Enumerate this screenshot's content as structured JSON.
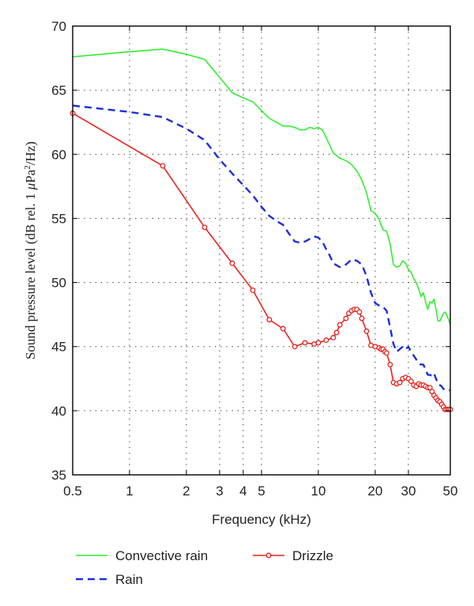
{
  "chart_data": {
    "type": "line",
    "xlabel": "Frequency (kHz)",
    "ylabel": {
      "prefix": "Sound pressure level (dB rel. 1 ",
      "mu": "μ",
      "pa": "Pa",
      "sup": "2",
      "suffix": "/Hz)"
    },
    "xscale": "log",
    "xlim": [
      0.5,
      50
    ],
    "ylim": [
      35,
      70
    ],
    "x_ticks": [
      0.5,
      1,
      2,
      3,
      4,
      5,
      10,
      20,
      30,
      50
    ],
    "x_tick_labels": [
      "0.5",
      "1",
      "2",
      "3",
      "4",
      "5",
      "10",
      "20",
      "30",
      "50"
    ],
    "y_ticks": [
      35,
      40,
      45,
      50,
      55,
      60,
      65,
      70
    ],
    "y_tick_labels": [
      "35",
      "40",
      "45",
      "50",
      "55",
      "60",
      "65",
      "70"
    ],
    "grid": true,
    "legend_position": "bottom",
    "series": [
      {
        "name": "Convective rain",
        "color": "#33ee33",
        "style": "solid",
        "marker": "none",
        "points": [
          [
            0.5,
            67.6
          ],
          [
            1.0,
            68.0
          ],
          [
            1.5,
            68.2
          ],
          [
            2.0,
            67.8
          ],
          [
            2.5,
            67.4
          ],
          [
            3.0,
            66.0
          ],
          [
            3.5,
            64.8
          ],
          [
            4.0,
            64.4
          ],
          [
            4.5,
            64.1
          ],
          [
            5.0,
            63.4
          ],
          [
            5.5,
            62.8
          ],
          [
            6.0,
            62.5
          ],
          [
            6.5,
            62.2
          ],
          [
            7.0,
            62.2
          ],
          [
            7.5,
            62.1
          ],
          [
            8.0,
            61.9
          ],
          [
            8.5,
            61.9
          ],
          [
            9.0,
            62.1
          ],
          [
            9.5,
            62.0
          ],
          [
            10.0,
            62.1
          ],
          [
            10.5,
            61.9
          ],
          [
            11.0,
            61.3
          ],
          [
            11.5,
            60.7
          ],
          [
            12.0,
            60.1
          ],
          [
            13.0,
            59.7
          ],
          [
            14.0,
            59.5
          ],
          [
            15.0,
            59.2
          ],
          [
            16.0,
            58.7
          ],
          [
            17.0,
            58.0
          ],
          [
            18.0,
            57.0
          ],
          [
            18.5,
            56.3
          ],
          [
            19.0,
            55.6
          ],
          [
            20.0,
            55.4
          ],
          [
            21.0,
            54.9
          ],
          [
            22.0,
            54.1
          ],
          [
            23.0,
            54.0
          ],
          [
            24.0,
            53.0
          ],
          [
            25.0,
            51.4
          ],
          [
            26.0,
            51.2
          ],
          [
            27.0,
            51.3
          ],
          [
            28.0,
            51.7
          ],
          [
            29.0,
            51.5
          ],
          [
            30.0,
            51.0
          ],
          [
            31.0,
            50.8
          ],
          [
            32.0,
            50.3
          ],
          [
            33.0,
            50.0
          ],
          [
            34.0,
            49.5
          ],
          [
            35.0,
            48.9
          ],
          [
            36.0,
            49.2
          ],
          [
            37.0,
            48.5
          ],
          [
            38.0,
            47.9
          ],
          [
            39.0,
            48.5
          ],
          [
            40.0,
            48.4
          ],
          [
            41.0,
            48.7
          ],
          [
            42.0,
            47.9
          ],
          [
            43.0,
            47.0
          ],
          [
            44.0,
            47.0
          ],
          [
            45.0,
            47.3
          ],
          [
            46.0,
            47.6
          ],
          [
            47.0,
            47.7
          ],
          [
            48.0,
            47.4
          ],
          [
            49.0,
            47.1
          ],
          [
            50.0,
            46.7
          ]
        ]
      },
      {
        "name": "Rain",
        "color": "#1a2ee0",
        "style": "dashed",
        "marker": "none",
        "points": [
          [
            0.5,
            63.8
          ],
          [
            1.0,
            63.3
          ],
          [
            1.5,
            62.9
          ],
          [
            2.0,
            62.0
          ],
          [
            2.5,
            61.1
          ],
          [
            3.0,
            59.6
          ],
          [
            3.5,
            58.5
          ],
          [
            4.0,
            57.6
          ],
          [
            4.5,
            56.8
          ],
          [
            5.0,
            55.9
          ],
          [
            5.5,
            55.2
          ],
          [
            6.0,
            54.8
          ],
          [
            6.5,
            54.5
          ],
          [
            7.0,
            53.8
          ],
          [
            7.5,
            53.2
          ],
          [
            8.0,
            53.1
          ],
          [
            8.5,
            53.2
          ],
          [
            9.0,
            53.4
          ],
          [
            9.5,
            53.6
          ],
          [
            10.0,
            53.5
          ],
          [
            10.5,
            53.2
          ],
          [
            11.0,
            52.6
          ],
          [
            11.5,
            52.1
          ],
          [
            12.0,
            51.5
          ],
          [
            13.0,
            51.2
          ],
          [
            14.0,
            51.4
          ],
          [
            15.0,
            51.8
          ],
          [
            16.0,
            51.7
          ],
          [
            17.0,
            51.4
          ],
          [
            18.0,
            50.5
          ],
          [
            19.0,
            49.2
          ],
          [
            20.0,
            48.4
          ],
          [
            21.0,
            48.2
          ],
          [
            22.0,
            48.1
          ],
          [
            23.0,
            47.8
          ],
          [
            24.0,
            46.5
          ],
          [
            25.0,
            45.2
          ],
          [
            26.0,
            44.6
          ],
          [
            27.0,
            44.8
          ],
          [
            28.0,
            45.0
          ],
          [
            29.0,
            44.8
          ],
          [
            30.0,
            45.0
          ],
          [
            31.0,
            44.6
          ],
          [
            32.0,
            44.3
          ],
          [
            33.0,
            44.0
          ],
          [
            34.0,
            43.7
          ],
          [
            35.0,
            43.6
          ],
          [
            36.0,
            43.6
          ],
          [
            37.0,
            43.2
          ],
          [
            38.0,
            42.8
          ],
          [
            39.0,
            42.8
          ],
          [
            40.0,
            42.7
          ],
          [
            41.0,
            42.9
          ],
          [
            42.0,
            42.5
          ],
          [
            43.0,
            42.1
          ],
          [
            44.0,
            42.0
          ],
          [
            45.0,
            41.9
          ],
          [
            46.0,
            41.7
          ],
          [
            47.0,
            41.6
          ],
          [
            48.0,
            41.6
          ],
          [
            49.0,
            41.6
          ],
          [
            50.0,
            41.6
          ]
        ]
      },
      {
        "name": "Drizzle",
        "color": "#e8231e",
        "style": "solid",
        "marker": "circle",
        "points": [
          [
            0.5,
            63.2
          ],
          [
            1.5,
            59.1
          ],
          [
            2.5,
            54.3
          ],
          [
            3.5,
            51.5
          ],
          [
            4.5,
            49.4
          ],
          [
            5.5,
            47.1
          ],
          [
            6.5,
            46.4
          ],
          [
            7.5,
            45.0
          ],
          [
            8.5,
            45.3
          ],
          [
            9.5,
            45.2
          ],
          [
            10.0,
            45.3
          ],
          [
            11.0,
            45.5
          ],
          [
            12.0,
            45.7
          ],
          [
            12.5,
            46.1
          ],
          [
            13.0,
            46.7
          ],
          [
            14.0,
            47.2
          ],
          [
            14.5,
            47.6
          ],
          [
            15.0,
            47.8
          ],
          [
            15.5,
            47.9
          ],
          [
            16.0,
            47.9
          ],
          [
            16.5,
            47.7
          ],
          [
            17.0,
            47.2
          ],
          [
            18.0,
            46.2
          ],
          [
            19.0,
            45.1
          ],
          [
            20.0,
            45.0
          ],
          [
            21.0,
            44.9
          ],
          [
            21.5,
            44.8
          ],
          [
            22.0,
            44.8
          ],
          [
            22.5,
            44.6
          ],
          [
            23.0,
            44.5
          ],
          [
            24.0,
            43.6
          ],
          [
            25.0,
            42.2
          ],
          [
            26.0,
            42.1
          ],
          [
            27.0,
            42.2
          ],
          [
            28.0,
            42.5
          ],
          [
            29.0,
            42.6
          ],
          [
            30.0,
            42.5
          ],
          [
            31.0,
            42.3
          ],
          [
            32.0,
            42.0
          ],
          [
            33.0,
            41.9
          ],
          [
            34.0,
            42.1
          ],
          [
            35.0,
            42.0
          ],
          [
            36.0,
            42.0
          ],
          [
            37.0,
            41.9
          ],
          [
            38.0,
            41.8
          ],
          [
            39.0,
            41.8
          ],
          [
            40.0,
            41.5
          ],
          [
            41.0,
            41.2
          ],
          [
            42.0,
            41.0
          ],
          [
            43.0,
            40.8
          ],
          [
            44.0,
            40.7
          ],
          [
            45.0,
            40.5
          ],
          [
            46.0,
            40.3
          ],
          [
            47.0,
            40.1
          ],
          [
            48.0,
            40.1
          ],
          [
            49.0,
            40.1
          ],
          [
            50.0,
            40.1
          ]
        ]
      }
    ],
    "legend": [
      {
        "series": 0,
        "label": "Convective rain"
      },
      {
        "series": 2,
        "label": "Drizzle"
      },
      {
        "series": 1,
        "label": "Rain"
      }
    ]
  }
}
